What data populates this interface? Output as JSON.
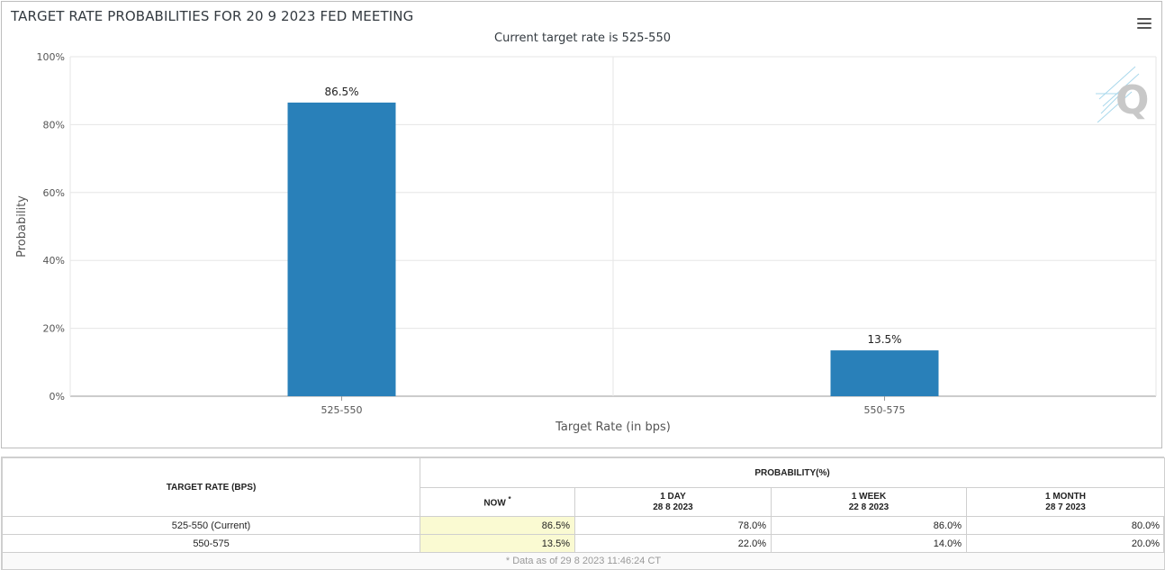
{
  "title": "TARGET RATE PROBABILITIES FOR 20 9 2023 FED MEETING",
  "subtitle": "Current target rate is 525-550",
  "menu_icon": "hamburger-menu-icon",
  "watermark_icon": "q-logo-icon",
  "bar_color": "#2980b9",
  "chart_data": {
    "type": "bar",
    "categories": [
      "525-550",
      "550-575"
    ],
    "values": [
      86.5,
      13.5
    ],
    "data_labels": [
      "86.5%",
      "13.5%"
    ],
    "xlabel": "Target Rate (in bps)",
    "ylabel": "Probability",
    "ylim": [
      0,
      100
    ],
    "yticks": [
      "0%",
      "20%",
      "40%",
      "60%",
      "80%",
      "100%"
    ],
    "grid": true
  },
  "table": {
    "col_target": "TARGET RATE (BPS)",
    "col_probability": "PROBABILITY(%)",
    "col_now": "NOW",
    "col_now_mark": "*",
    "col_1day": "1 DAY",
    "col_1day_date": "28 8 2023",
    "col_1week": "1 WEEK",
    "col_1week_date": "22 8 2023",
    "col_1month": "1 MONTH",
    "col_1month_date": "28 7 2023",
    "rows": [
      {
        "rate": "525-550 (Current)",
        "now": "86.5%",
        "day": "78.0%",
        "week": "86.0%",
        "month": "80.0%"
      },
      {
        "rate": "550-575",
        "now": "13.5%",
        "day": "22.0%",
        "week": "14.0%",
        "month": "20.0%"
      }
    ],
    "footnote": "* Data as of 29 8 2023 11:46:24 CT"
  }
}
